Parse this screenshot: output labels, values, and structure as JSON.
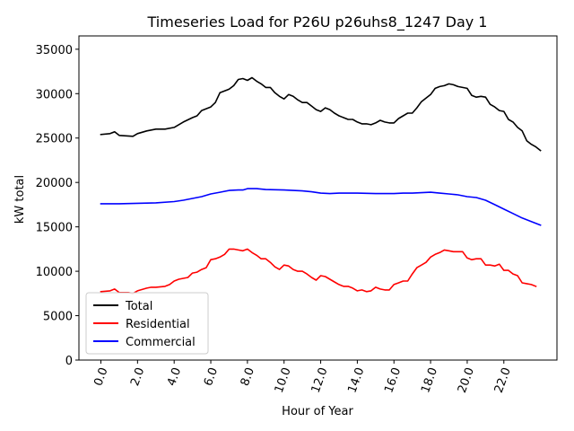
{
  "chart_data": {
    "type": "line",
    "title": "Timeseries Load for P26U p26uhs8_1247  Day 1",
    "xlabel": "Hour of Year",
    "ylabel": "kW total",
    "xlim": [
      -1.2,
      24.9
    ],
    "ylim": [
      0,
      36500
    ],
    "xticks": [
      0,
      2,
      4,
      6,
      8,
      10,
      12,
      14,
      16,
      18,
      20,
      22
    ],
    "xtick_labels": [
      "0.0",
      "2.0",
      "4.0",
      "6.0",
      "8.0",
      "10.0",
      "12.0",
      "14.0",
      "16.0",
      "18.0",
      "20.0",
      "22.0"
    ],
    "yticks": [
      0,
      5000,
      10000,
      15000,
      20000,
      25000,
      30000,
      35000
    ],
    "ytick_labels": [
      "0",
      "5000",
      "10000",
      "15000",
      "20000",
      "25000",
      "30000",
      "35000"
    ],
    "legend_position": "lower-left",
    "series": [
      {
        "name": "Total",
        "color": "#000000",
        "points": [
          [
            0,
            25400
          ],
          [
            0.5,
            25500
          ],
          [
            0.75,
            25700
          ],
          [
            1,
            25300
          ],
          [
            1.75,
            25200
          ],
          [
            2,
            25500
          ],
          [
            2.5,
            25800
          ],
          [
            3,
            26000
          ],
          [
            3.5,
            26000
          ],
          [
            4,
            26200
          ],
          [
            4.5,
            26800
          ],
          [
            5,
            27300
          ],
          [
            5.25,
            27500
          ],
          [
            5.5,
            28100
          ],
          [
            6,
            28500
          ],
          [
            6.25,
            29000
          ],
          [
            6.5,
            30100
          ],
          [
            7,
            30500
          ],
          [
            7.25,
            30900
          ],
          [
            7.5,
            31600
          ],
          [
            7.75,
            31700
          ],
          [
            8,
            31500
          ],
          [
            8.25,
            31800
          ],
          [
            8.5,
            31400
          ],
          [
            8.75,
            31100
          ],
          [
            9,
            30700
          ],
          [
            9.25,
            30700
          ],
          [
            9.5,
            30100
          ],
          [
            9.75,
            29700
          ],
          [
            10,
            29400
          ],
          [
            10.25,
            29900
          ],
          [
            10.5,
            29700
          ],
          [
            10.75,
            29300
          ],
          [
            11,
            29000
          ],
          [
            11.25,
            29000
          ],
          [
            11.5,
            28600
          ],
          [
            11.75,
            28200
          ],
          [
            12,
            28000
          ],
          [
            12.25,
            28400
          ],
          [
            12.5,
            28200
          ],
          [
            12.75,
            27800
          ],
          [
            13,
            27500
          ],
          [
            13.25,
            27300
          ],
          [
            13.5,
            27100
          ],
          [
            13.75,
            27100
          ],
          [
            14,
            26800
          ],
          [
            14.25,
            26600
          ],
          [
            14.5,
            26600
          ],
          [
            14.75,
            26500
          ],
          [
            15,
            26700
          ],
          [
            15.25,
            27000
          ],
          [
            15.5,
            26800
          ],
          [
            15.75,
            26700
          ],
          [
            16,
            26700
          ],
          [
            16.25,
            27200
          ],
          [
            16.5,
            27500
          ],
          [
            16.75,
            27800
          ],
          [
            17,
            27800
          ],
          [
            17.25,
            28400
          ],
          [
            17.5,
            29100
          ],
          [
            17.75,
            29500
          ],
          [
            18,
            29900
          ],
          [
            18.25,
            30600
          ],
          [
            18.5,
            30800
          ],
          [
            18.75,
            30900
          ],
          [
            19,
            31100
          ],
          [
            19.25,
            31000
          ],
          [
            19.5,
            30800
          ],
          [
            19.75,
            30700
          ],
          [
            20,
            30600
          ],
          [
            20.25,
            29800
          ],
          [
            20.5,
            29600
          ],
          [
            20.75,
            29700
          ],
          [
            21,
            29600
          ],
          [
            21.25,
            28800
          ],
          [
            21.5,
            28500
          ],
          [
            21.75,
            28100
          ],
          [
            22,
            28000
          ],
          [
            22.25,
            27100
          ],
          [
            22.5,
            26800
          ],
          [
            22.75,
            26200
          ],
          [
            23,
            25800
          ],
          [
            23.25,
            24700
          ],
          [
            23.5,
            24300
          ],
          [
            23.75,
            24000
          ],
          [
            24,
            23600
          ]
        ]
      },
      {
        "name": "Residential",
        "color": "#ff0000",
        "points": [
          [
            0,
            7700
          ],
          [
            0.5,
            7800
          ],
          [
            0.75,
            8000
          ],
          [
            1,
            7600
          ],
          [
            1.5,
            7600
          ],
          [
            1.75,
            7500
          ],
          [
            2,
            7800
          ],
          [
            2.5,
            8100
          ],
          [
            2.75,
            8200
          ],
          [
            3,
            8200
          ],
          [
            3.5,
            8300
          ],
          [
            3.75,
            8500
          ],
          [
            4,
            8900
          ],
          [
            4.25,
            9100
          ],
          [
            4.5,
            9200
          ],
          [
            4.75,
            9300
          ],
          [
            5,
            9800
          ],
          [
            5.25,
            9900
          ],
          [
            5.5,
            10200
          ],
          [
            5.75,
            10400
          ],
          [
            6,
            11300
          ],
          [
            6.25,
            11400
          ],
          [
            6.5,
            11600
          ],
          [
            6.75,
            11900
          ],
          [
            7,
            12500
          ],
          [
            7.25,
            12500
          ],
          [
            7.5,
            12400
          ],
          [
            7.75,
            12300
          ],
          [
            8,
            12500
          ],
          [
            8.25,
            12100
          ],
          [
            8.5,
            11800
          ],
          [
            8.75,
            11400
          ],
          [
            9,
            11400
          ],
          [
            9.25,
            11000
          ],
          [
            9.5,
            10500
          ],
          [
            9.75,
            10200
          ],
          [
            10,
            10700
          ],
          [
            10.25,
            10600
          ],
          [
            10.5,
            10200
          ],
          [
            10.75,
            10000
          ],
          [
            11,
            10000
          ],
          [
            11.25,
            9700
          ],
          [
            11.5,
            9300
          ],
          [
            11.75,
            9000
          ],
          [
            12,
            9500
          ],
          [
            12.25,
            9400
          ],
          [
            12.5,
            9100
          ],
          [
            12.75,
            8800
          ],
          [
            13,
            8500
          ],
          [
            13.25,
            8300
          ],
          [
            13.5,
            8300
          ],
          [
            13.75,
            8100
          ],
          [
            14,
            7800
          ],
          [
            14.25,
            7900
          ],
          [
            14.5,
            7700
          ],
          [
            14.75,
            7800
          ],
          [
            15,
            8200
          ],
          [
            15.25,
            8000
          ],
          [
            15.5,
            7900
          ],
          [
            15.75,
            7900
          ],
          [
            16,
            8500
          ],
          [
            16.25,
            8700
          ],
          [
            16.5,
            8900
          ],
          [
            16.75,
            8900
          ],
          [
            17,
            9700
          ],
          [
            17.25,
            10400
          ],
          [
            17.5,
            10700
          ],
          [
            17.75,
            11000
          ],
          [
            18,
            11600
          ],
          [
            18.25,
            11900
          ],
          [
            18.5,
            12100
          ],
          [
            18.75,
            12400
          ],
          [
            19,
            12300
          ],
          [
            19.25,
            12200
          ],
          [
            19.5,
            12200
          ],
          [
            19.75,
            12200
          ],
          [
            20,
            11500
          ],
          [
            20.25,
            11300
          ],
          [
            20.5,
            11400
          ],
          [
            20.75,
            11400
          ],
          [
            21,
            10700
          ],
          [
            21.25,
            10700
          ],
          [
            21.5,
            10600
          ],
          [
            21.75,
            10800
          ],
          [
            22,
            10100
          ],
          [
            22.25,
            10100
          ],
          [
            22.5,
            9700
          ],
          [
            22.75,
            9500
          ],
          [
            23,
            8700
          ],
          [
            23.25,
            8600
          ],
          [
            23.5,
            8500
          ],
          [
            23.75,
            8300
          ]
        ]
      },
      {
        "name": "Commercial",
        "color": "#0000ff",
        "points": [
          [
            0,
            17600
          ],
          [
            1,
            17600
          ],
          [
            2,
            17650
          ],
          [
            3,
            17700
          ],
          [
            4,
            17850
          ],
          [
            4.5,
            18000
          ],
          [
            5,
            18200
          ],
          [
            5.5,
            18400
          ],
          [
            6,
            18700
          ],
          [
            6.5,
            18900
          ],
          [
            7,
            19100
          ],
          [
            7.5,
            19150
          ],
          [
            7.75,
            19150
          ],
          [
            8,
            19300
          ],
          [
            8.5,
            19300
          ],
          [
            9,
            19200
          ],
          [
            10,
            19150
          ],
          [
            11,
            19050
          ],
          [
            11.5,
            18950
          ],
          [
            12,
            18800
          ],
          [
            12.5,
            18750
          ],
          [
            13,
            18800
          ],
          [
            14,
            18800
          ],
          [
            15,
            18750
          ],
          [
            16,
            18750
          ],
          [
            16.5,
            18800
          ],
          [
            17,
            18800
          ],
          [
            17.5,
            18850
          ],
          [
            18,
            18900
          ],
          [
            18.5,
            18800
          ],
          [
            19,
            18700
          ],
          [
            19.5,
            18600
          ],
          [
            20,
            18400
          ],
          [
            20.5,
            18300
          ],
          [
            21,
            18000
          ],
          [
            21.5,
            17500
          ],
          [
            22,
            17000
          ],
          [
            22.5,
            16500
          ],
          [
            23,
            16000
          ],
          [
            23.5,
            15600
          ],
          [
            24,
            15200
          ]
        ]
      }
    ]
  }
}
